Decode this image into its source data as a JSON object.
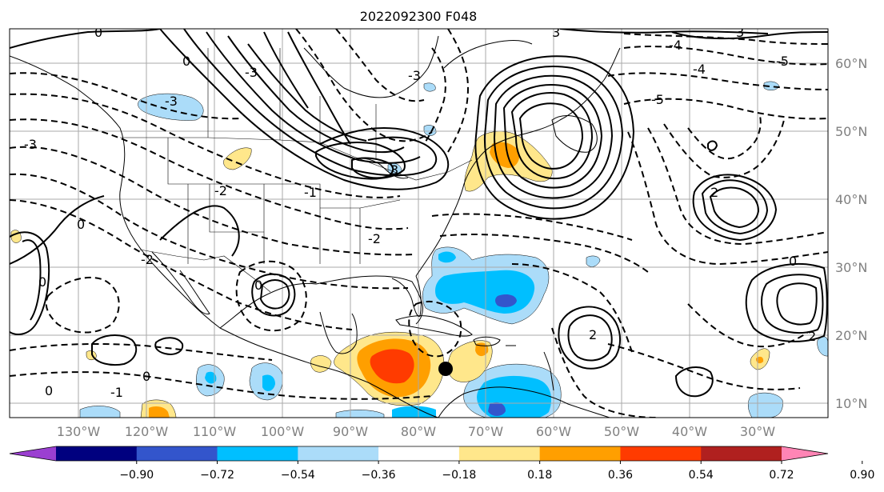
{
  "title": "2022092300 F048",
  "lon_labels": [
    "130°W",
    "120°W",
    "110°W",
    "100°W",
    "90°W",
    "80°W",
    "70°W",
    "60°W",
    "50°W",
    "40°W",
    "30°W"
  ],
  "lat_labels": [
    "60°N",
    "50°N",
    "40°N",
    "30°N",
    "20°N",
    "10°N"
  ],
  "colorbar": {
    "ticks": [
      "−0.90",
      "−0.72",
      "−0.54",
      "−0.36",
      "−0.18",
      "0.18",
      "0.36",
      "0.54",
      "0.72",
      "0.90"
    ],
    "colors": [
      "#9b3fd1",
      "#00007f",
      "#3355cc",
      "#00bfff",
      "#abdcf9",
      "#ffffff",
      "#ffe78b",
      "#ff9f00",
      "#ff3b00",
      "#b0201f",
      "#ff85b5"
    ]
  },
  "contour_labels": [
    "0",
    "0",
    "0",
    "0",
    "0",
    "0",
    "0",
    "-1",
    "-1",
    "-2",
    "-2",
    "-2",
    "-3",
    "-3",
    "-3",
    "-4",
    "-4",
    "-5",
    "-5",
    "2",
    "2",
    "2",
    "3",
    "3",
    "3",
    "-3",
    "0"
  ],
  "storm_marker": "tropical-storm-position",
  "fill_colors": {
    "blue_light": "#abdcf9",
    "blue": "#00bfff",
    "blue_dark": "#3355cc",
    "yellow": "#ffe78b",
    "orange": "#ff9f00",
    "red": "#ff3b00"
  }
}
